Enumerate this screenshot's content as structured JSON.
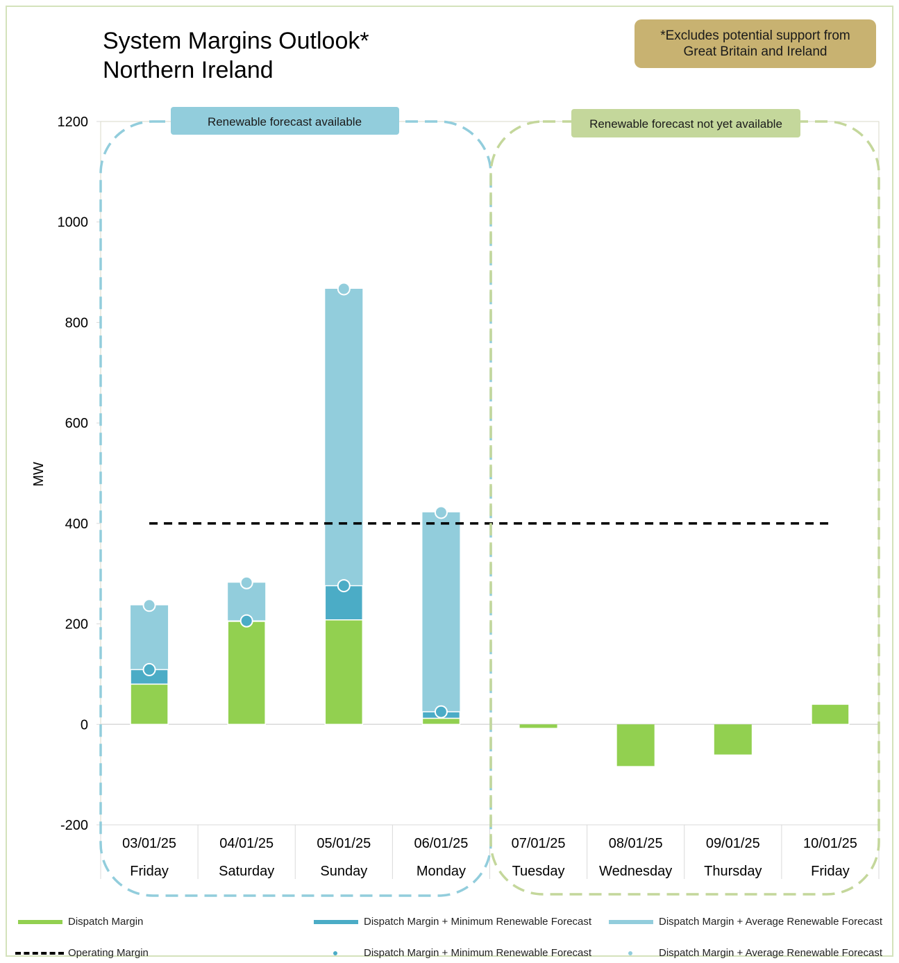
{
  "title_line1": "System Margins Outlook*",
  "title_line2": "Northern Ireland",
  "note_line1": "*Excludes potential support from",
  "note_line2": "Great Britain and Ireland",
  "region_labels": {
    "available": "Renewable forecast available",
    "not_available": "Renewable forecast not yet available"
  },
  "colors": {
    "dispatch": "#92d050",
    "min_renewable": "#4bacc6",
    "avg_renewable": "#92cddc",
    "operating": "#000000",
    "region_blue": "#92cddc",
    "region_green": "#c4d79b",
    "note_bg": "#c8b271"
  },
  "legend": {
    "dispatch": "Dispatch Margin",
    "min_line": "Dispatch Margin + Minimum Renewable Forecast",
    "avg_line": "Dispatch Margin + Average Renewable Forecast",
    "operating": "Operating Margin",
    "min_marker": "Dispatch Margin + Minimum Renewable Forecast",
    "avg_marker": "Dispatch Margin + Average Renewable Forecast"
  },
  "chart_data": {
    "type": "bar",
    "ylabel": "MW",
    "ylim": [
      -200,
      1200
    ],
    "yticks": [
      "-200",
      "0",
      "200",
      "400",
      "600",
      "800",
      "1000",
      "1200"
    ],
    "dates": [
      "03/01/25",
      "04/01/25",
      "05/01/25",
      "06/01/25",
      "07/01/25",
      "08/01/25",
      "09/01/25",
      "10/01/25"
    ],
    "days": [
      "Friday",
      "Saturday",
      "Sunday",
      "Monday",
      "Tuesday",
      "Wednesday",
      "Thursday",
      "Friday"
    ],
    "series": [
      {
        "name": "Dispatch Margin",
        "values": [
          80,
          205,
          208,
          12,
          -7,
          -83,
          -60,
          40
        ]
      },
      {
        "name": "Dispatch Margin + Minimum Renewable Forecast",
        "values": [
          109,
          206,
          276,
          25,
          null,
          null,
          null,
          null
        ]
      },
      {
        "name": "Dispatch Margin + Average Renewable Forecast",
        "values": [
          237,
          282,
          867,
          422,
          null,
          null,
          null,
          null
        ]
      },
      {
        "name": "Operating Margin",
        "values": [
          400,
          400,
          400,
          400,
          400,
          400,
          400,
          400
        ]
      }
    ]
  }
}
